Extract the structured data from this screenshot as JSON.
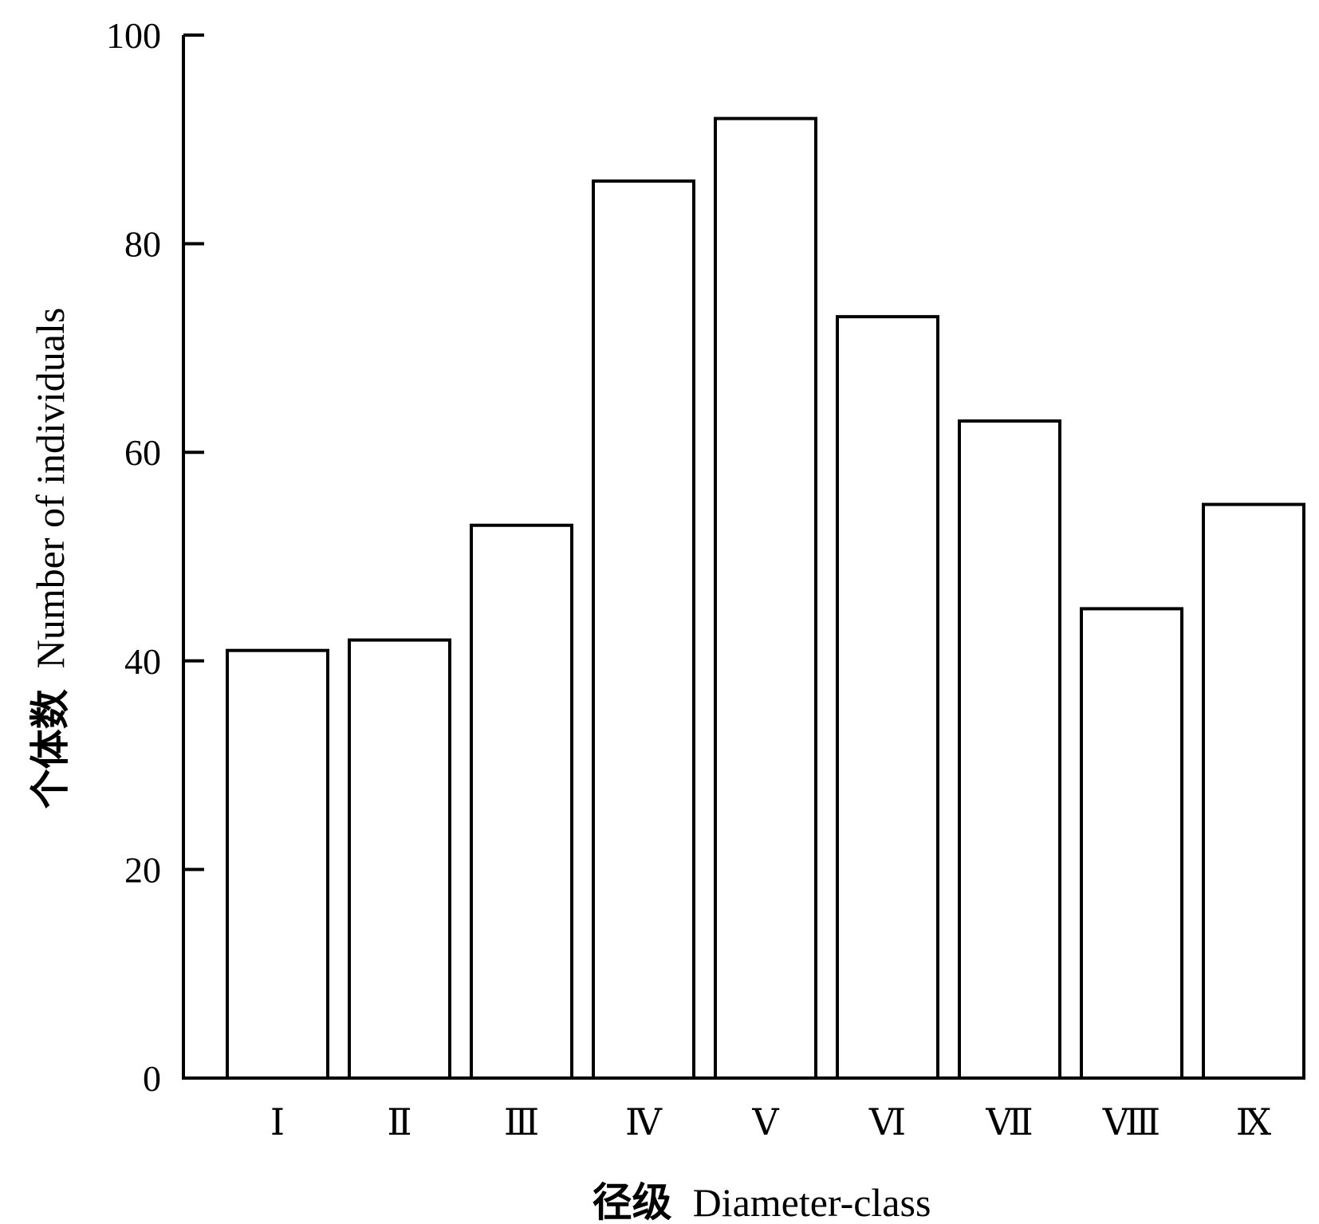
{
  "chart_data": {
    "type": "bar",
    "categories": [
      "Ⅰ",
      "Ⅱ",
      "Ⅲ",
      "Ⅳ",
      "Ⅴ",
      "Ⅵ",
      "Ⅶ",
      "Ⅷ",
      "Ⅸ"
    ],
    "values": [
      41,
      42,
      53,
      86,
      92,
      73,
      63,
      45,
      55
    ],
    "xlabel_cn": "径级",
    "xlabel_en": "Diameter-class",
    "ylabel_cn": "个体数",
    "ylabel_en": "Number of individuals",
    "ylim": [
      0,
      100
    ],
    "yticks": [
      0,
      20,
      40,
      60,
      80,
      100
    ],
    "grid": false,
    "bar_fill": "#ffffff",
    "bar_stroke": "#000000"
  }
}
